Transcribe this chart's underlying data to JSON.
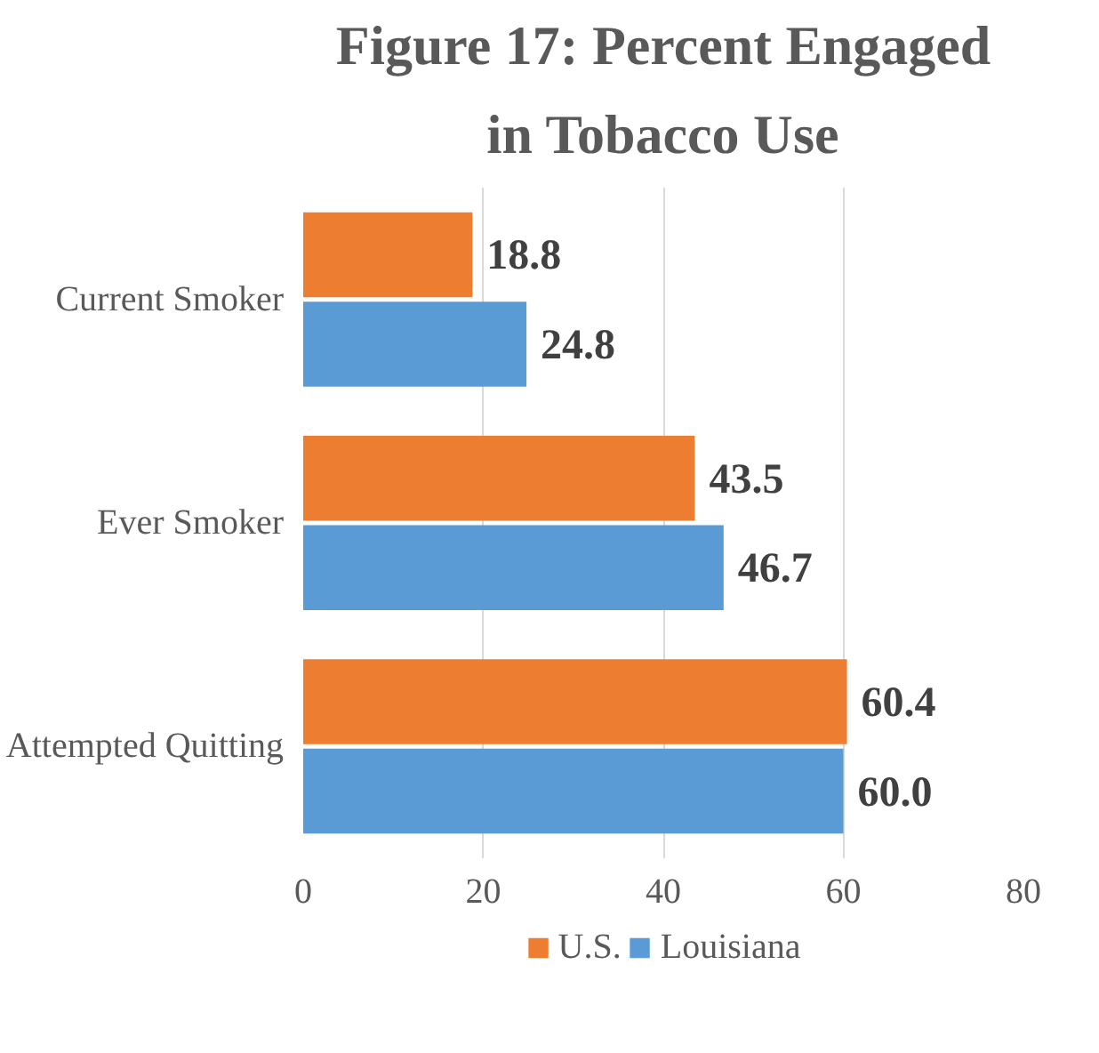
{
  "chart_data": {
    "type": "bar",
    "orientation": "horizontal",
    "title": "Figure 17: Percent Engaged in Tobacco Use",
    "categories": [
      "Current Smoker",
      "Ever Smoker",
      "Attempted Quitting"
    ],
    "series": [
      {
        "name": "U.S.",
        "color": "#ed7d31",
        "values": [
          18.8,
          43.5,
          60.4
        ],
        "value_labels": [
          "18.8",
          "43.5",
          "60.4"
        ]
      },
      {
        "name": "Louisiana",
        "color": "#5b9bd5",
        "values": [
          24.8,
          46.7,
          60.0
        ],
        "value_labels": [
          "24.8",
          "46.7",
          "60.0"
        ]
      }
    ],
    "xlim": [
      0,
      80
    ],
    "xticks": [
      0,
      20,
      40,
      60,
      80
    ],
    "grid": "x",
    "legend": "bottom"
  }
}
